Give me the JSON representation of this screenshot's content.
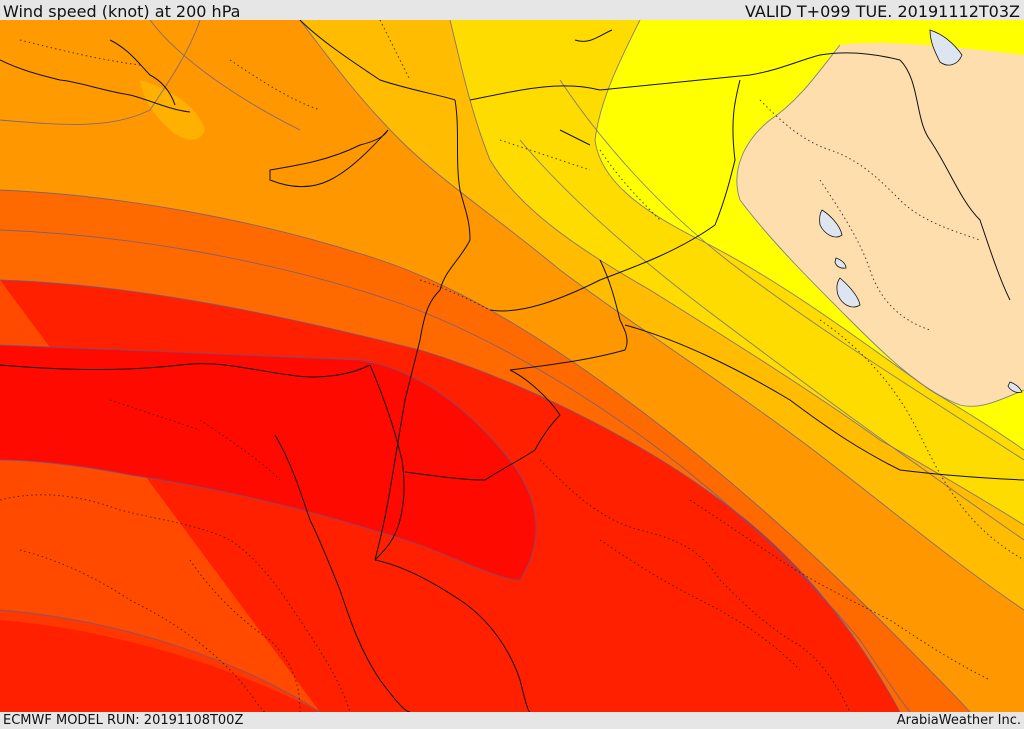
{
  "header": {
    "title": "Wind speed (knot) at 200 hPa",
    "valid": "VALID T+099 TUE. 20191112T03Z"
  },
  "footer": {
    "model_run": "ECMWF MODEL RUN: 20191108T00Z",
    "credit": "ArabiaWeather Inc."
  },
  "colors": {
    "land_low": "#ffdead",
    "band_yellow": "#ffff00",
    "band_gold": "#ffe000",
    "band_amber": "#ffc000",
    "band_orange": "#ffa000",
    "band_dark_orange": "#ff7000",
    "band_red_orange": "#ff4000",
    "band_red": "#ff2000",
    "band_core": "#ff0000",
    "water": "#dde6f0"
  }
}
